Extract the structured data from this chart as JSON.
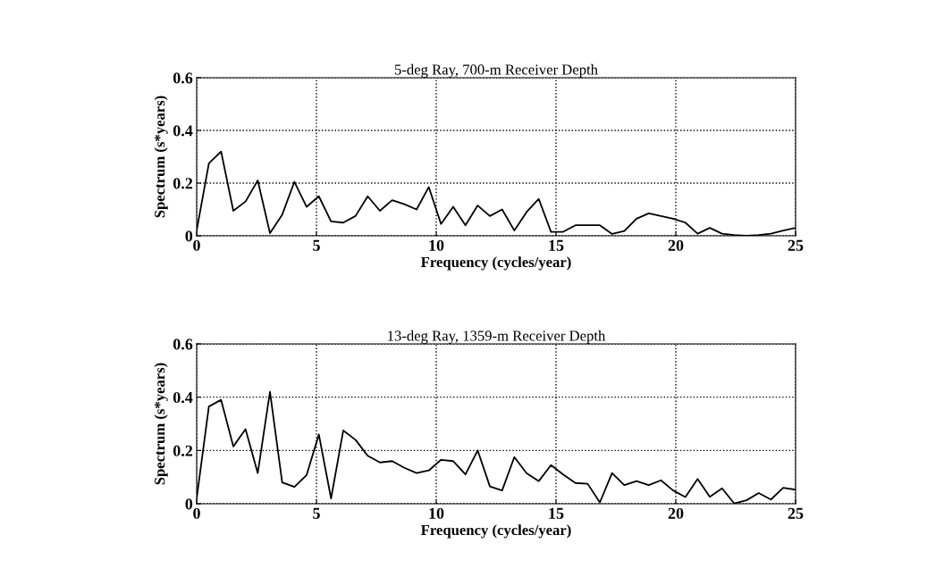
{
  "chart_data": [
    {
      "type": "line",
      "title": "5-deg Ray, 700-m Receiver Depth",
      "xlabel": "Frequency (cycles/year)",
      "ylabel": "Spectrum (s*years)",
      "xlim": [
        0,
        25
      ],
      "ylim": [
        0,
        0.6
      ],
      "xticks": [
        0,
        5,
        10,
        15,
        20,
        25
      ],
      "yticks": [
        0,
        0.2,
        0.4,
        0.6
      ],
      "grid": true,
      "marker": "none",
      "line_style": "solid",
      "x": [
        0,
        0.51,
        1.02,
        1.53,
        2.04,
        2.55,
        3.06,
        3.57,
        4.08,
        4.59,
        5.1,
        5.61,
        6.12,
        6.63,
        7.14,
        7.65,
        8.16,
        8.67,
        9.18,
        9.69,
        10.2,
        10.71,
        11.22,
        11.73,
        12.24,
        12.75,
        13.26,
        13.77,
        14.28,
        14.79,
        15.3,
        15.81,
        16.32,
        16.83,
        17.34,
        17.85,
        18.36,
        18.87,
        19.38,
        19.89,
        20.4,
        20.91,
        21.42,
        21.93,
        22.44,
        22.95,
        23.46,
        23.97,
        24.48,
        24.99
      ],
      "series": [
        {
          "color": "#000000",
          "values": [
            0.02,
            0.275,
            0.32,
            0.095,
            0.13,
            0.21,
            0.01,
            0.08,
            0.205,
            0.11,
            0.15,
            0.055,
            0.05,
            0.075,
            0.15,
            0.095,
            0.135,
            0.12,
            0.1,
            0.185,
            0.045,
            0.11,
            0.04,
            0.115,
            0.075,
            0.1,
            0.02,
            0.09,
            0.14,
            0.015,
            0.015,
            0.04,
            0.04,
            0.04,
            0.007,
            0.018,
            0.065,
            0.085,
            0.075,
            0.065,
            0.05,
            0.008,
            0.03,
            0.008,
            0.003,
            0.0,
            0.003,
            0.008,
            0.02,
            0.03
          ]
        }
      ]
    },
    {
      "type": "line",
      "title": "13-deg Ray, 1359-m Receiver Depth",
      "xlabel": "Frequency (cycles/year)",
      "ylabel": "Spectrum (s*years)",
      "xlim": [
        0,
        25
      ],
      "ylim": [
        0,
        0.6
      ],
      "xticks": [
        0,
        5,
        10,
        15,
        20,
        25
      ],
      "yticks": [
        0,
        0.2,
        0.4,
        0.6
      ],
      "grid": true,
      "marker": "none",
      "line_style": "solid",
      "x": [
        0,
        0.51,
        1.02,
        1.53,
        2.04,
        2.55,
        3.06,
        3.57,
        4.08,
        4.59,
        5.1,
        5.61,
        6.12,
        6.63,
        7.14,
        7.65,
        8.16,
        8.67,
        9.18,
        9.69,
        10.2,
        10.71,
        11.22,
        11.73,
        12.24,
        12.75,
        13.26,
        13.77,
        14.28,
        14.79,
        15.3,
        15.81,
        16.32,
        16.83,
        17.34,
        17.85,
        18.36,
        18.87,
        19.38,
        19.89,
        20.4,
        20.91,
        21.42,
        21.93,
        22.44,
        22.95,
        23.46,
        23.97,
        24.48,
        24.99
      ],
      "series": [
        {
          "color": "#000000",
          "values": [
            0.02,
            0.365,
            0.39,
            0.215,
            0.28,
            0.115,
            0.42,
            0.08,
            0.063,
            0.108,
            0.26,
            0.02,
            0.275,
            0.24,
            0.18,
            0.155,
            0.16,
            0.135,
            0.115,
            0.125,
            0.165,
            0.16,
            0.11,
            0.2,
            0.065,
            0.05,
            0.175,
            0.115,
            0.085,
            0.145,
            0.11,
            0.078,
            0.075,
            0.005,
            0.115,
            0.07,
            0.085,
            0.07,
            0.088,
            0.05,
            0.025,
            0.093,
            0.026,
            0.058,
            0.001,
            0.013,
            0.04,
            0.016,
            0.06,
            0.053
          ]
        }
      ]
    }
  ]
}
